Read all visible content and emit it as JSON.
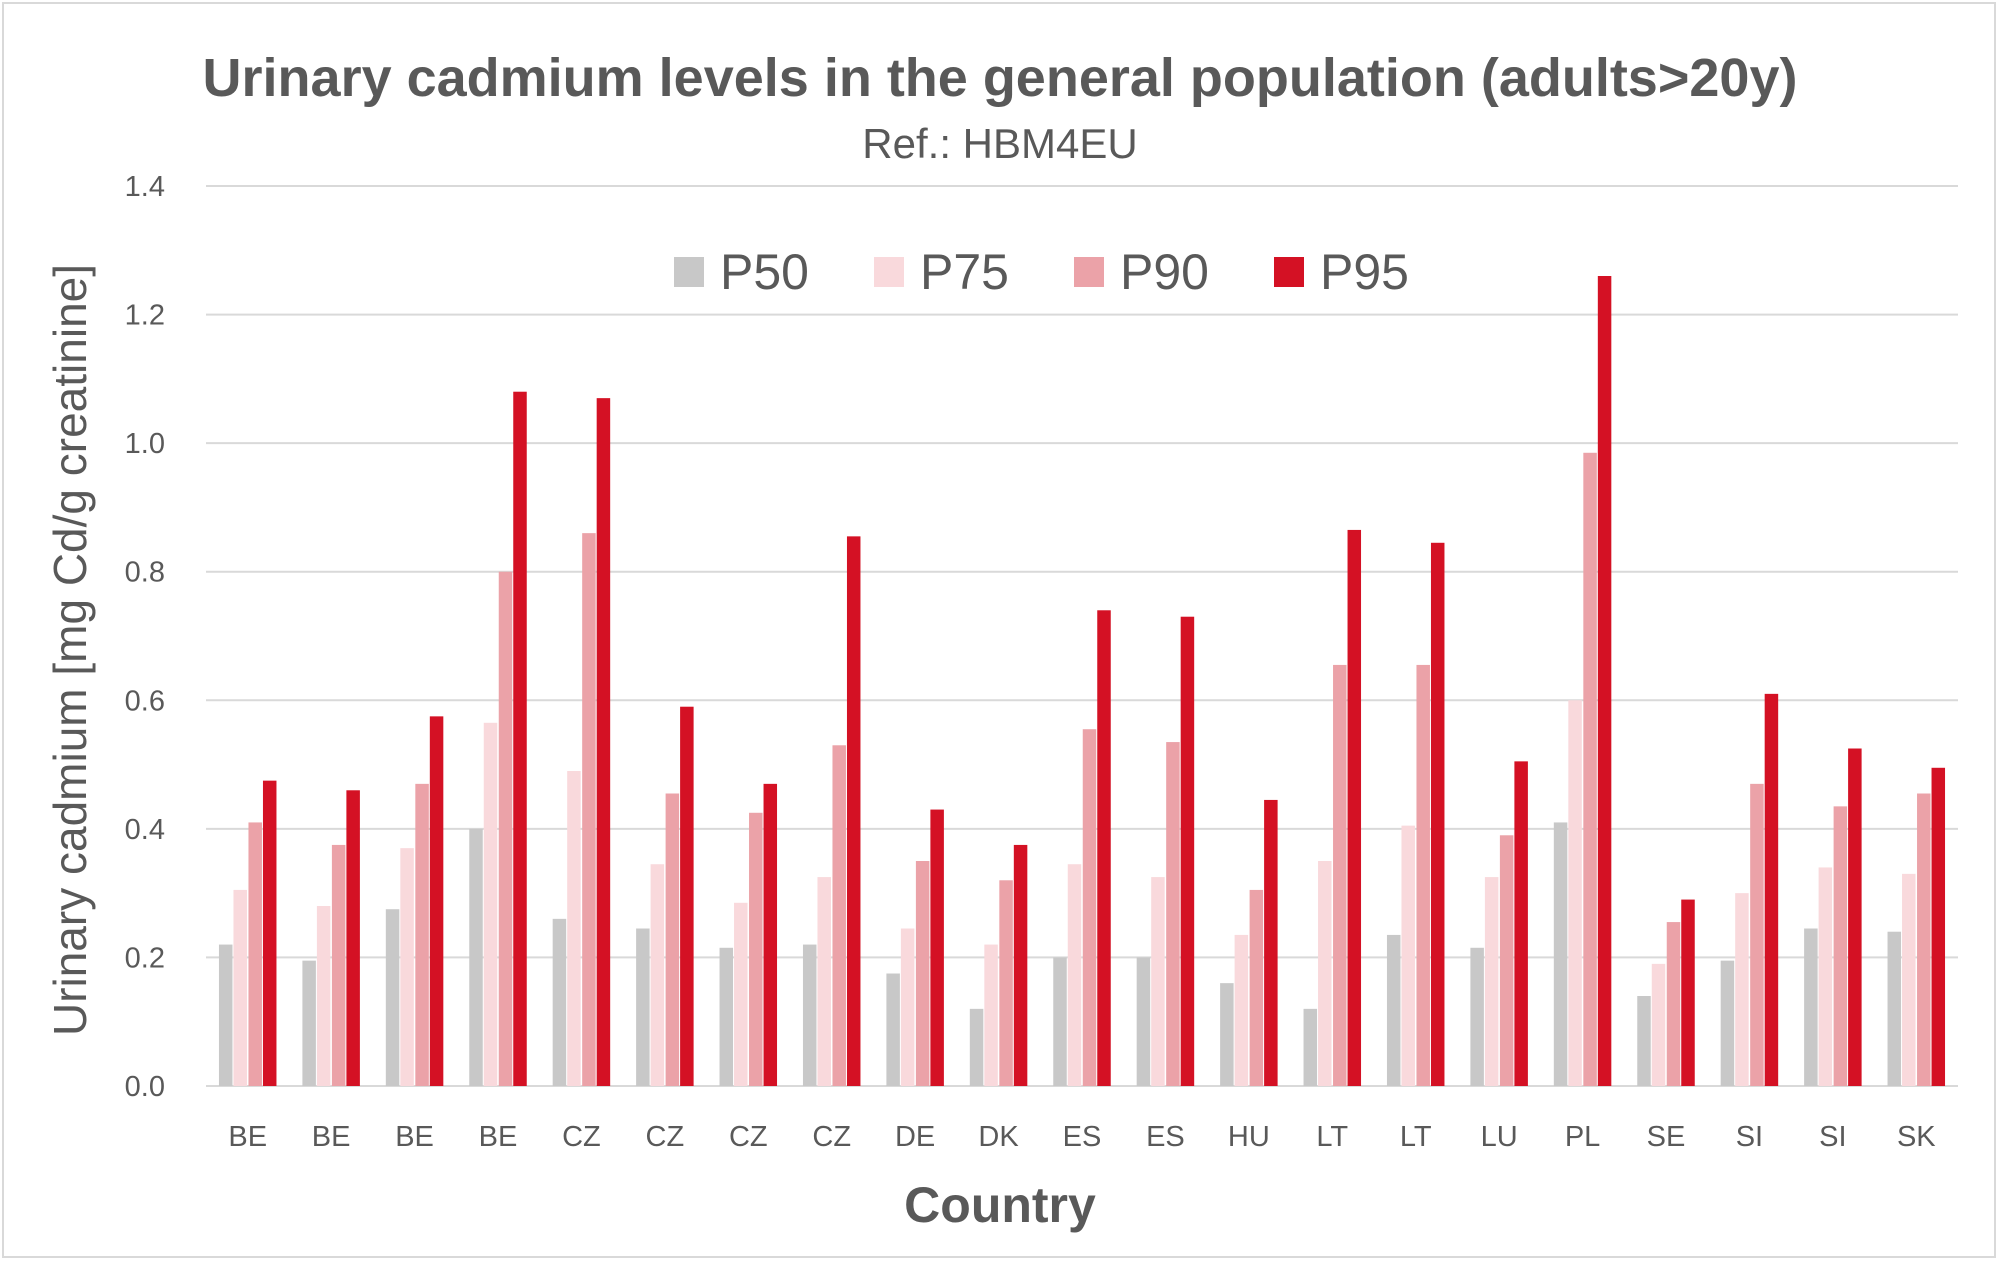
{
  "chart_data": {
    "type": "bar",
    "title": "Urinary cadmium levels in the general population (adults>20y)",
    "subtitle": "Ref.: HBM4EU",
    "xlabel": "Country",
    "ylabel": "Urinary cadmium [mg Cd/g creatinine]",
    "ylim": [
      0,
      1.4
    ],
    "yticks": [
      "0.0",
      "0.2",
      "0.4",
      "0.6",
      "0.8",
      "1.0",
      "1.2",
      "1.4"
    ],
    "grid": true,
    "legend_position": "top-center",
    "categories": [
      "BE",
      "BE",
      "BE",
      "BE",
      "CZ",
      "CZ",
      "CZ",
      "CZ",
      "DE",
      "DK",
      "ES",
      "ES",
      "HU",
      "LT",
      "LT",
      "LU",
      "PL",
      "SE",
      "SI",
      "SI",
      "SK"
    ],
    "series": [
      {
        "name": "P50",
        "color": "#c8c8c8",
        "values": [
          0.22,
          0.195,
          0.275,
          0.4,
          0.26,
          0.245,
          0.215,
          0.22,
          0.175,
          0.12,
          0.2,
          0.2,
          0.16,
          0.12,
          0.235,
          0.215,
          0.41,
          0.14,
          0.195,
          0.245,
          0.24
        ]
      },
      {
        "name": "P75",
        "color": "#f9d9dc",
        "values": [
          0.305,
          0.28,
          0.37,
          0.565,
          0.49,
          0.345,
          0.285,
          0.325,
          0.245,
          0.22,
          0.345,
          0.325,
          0.235,
          0.35,
          0.405,
          0.325,
          0.6,
          0.19,
          0.3,
          0.34,
          0.33
        ]
      },
      {
        "name": "P90",
        "color": "#eba2a8",
        "values": [
          0.41,
          0.375,
          0.47,
          0.8,
          0.86,
          0.455,
          0.425,
          0.53,
          0.35,
          0.32,
          0.555,
          0.535,
          0.305,
          0.655,
          0.655,
          0.39,
          0.985,
          0.255,
          0.47,
          0.435,
          0.455
        ]
      },
      {
        "name": "P95",
        "color": "#d41124",
        "values": [
          0.475,
          0.46,
          0.575,
          1.08,
          1.07,
          0.59,
          0.47,
          0.855,
          0.43,
          0.375,
          0.74,
          0.73,
          0.445,
          0.865,
          0.845,
          0.505,
          1.26,
          0.29,
          0.61,
          0.525,
          0.495
        ]
      }
    ]
  }
}
